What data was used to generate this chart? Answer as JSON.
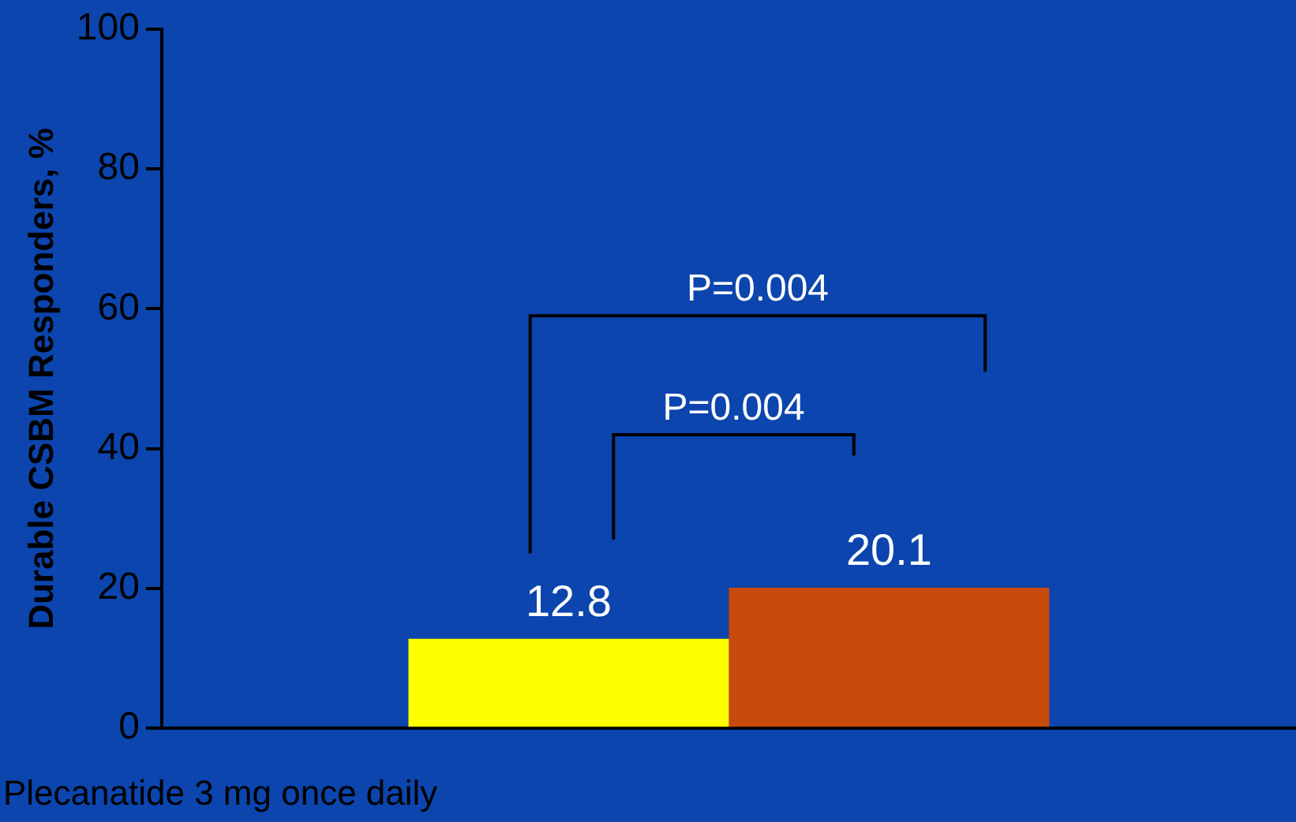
{
  "chart_data": {
    "type": "bar",
    "ylabel": "Durable CSBM Responders, %",
    "categories": [
      null
    ],
    "series": [
      {
        "color": "#ffff00",
        "values": [
          12.8
        ]
      },
      {
        "color": "#c84a0c",
        "values": [
          20.1
        ]
      }
    ],
    "ylim": [
      0,
      100
    ],
    "yticks": [
      0,
      20,
      40,
      60,
      80,
      100
    ],
    "grid": false,
    "legend": false,
    "data_labels": true,
    "annotations": [
      "P=0.004",
      "P=0.004",
      "Plecanatide 3 mg once daily"
    ]
  }
}
